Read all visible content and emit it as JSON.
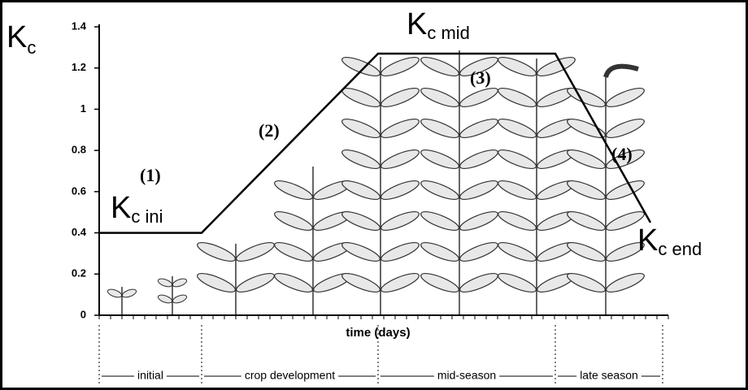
{
  "chart_data": {
    "type": "line",
    "y_label": {
      "text": "K",
      "sub": "c"
    },
    "x_label": "time (days)",
    "stages": [
      "initial",
      "crop development",
      "mid-season",
      "late season"
    ],
    "values": [
      0.4,
      0.4,
      1.27,
      1.27,
      0.45
    ],
    "color": "#000000",
    "ylim": [
      0,
      1.4
    ],
    "yticks": [
      0,
      0.2,
      0.4,
      0.6,
      0.8,
      1,
      1.2,
      1.4
    ],
    "annotations": [
      "(1)",
      "(2)",
      "(3)",
      "(4)"
    ],
    "kc_labels": [
      {
        "text": "K",
        "sub": "c ini"
      },
      {
        "text": "K",
        "sub": "c mid"
      },
      {
        "text": "K",
        "sub": "c end"
      }
    ]
  }
}
